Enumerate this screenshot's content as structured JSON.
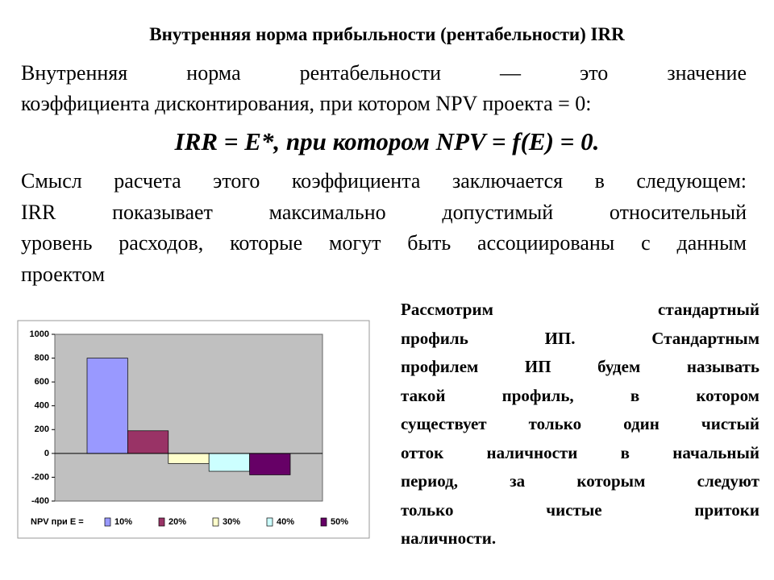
{
  "header": {
    "title": "Внутренняя норма прибыльности (рентабельности) IRR"
  },
  "paragraph1": [
    "Внутренняя норма рентабельности — это значение",
    "коэффициента дисконтирования, при котором NPV проекта = 0:"
  ],
  "formula": "IRR = E*, при котором NPV = f(E) = 0.",
  "paragraph2": [
    "Смысл расчета этого коэффициента заключается в следующем:",
    "IRR показывает максимально допустимый относительный",
    "уровень расходов, которые могут быть ассоциированы с данным",
    "проектом"
  ],
  "side_text": [
    "Рассмотрим стандартный",
    "профиль ИП. Стандартным",
    "профилем ИП будем называть",
    "такой профиль, в котором",
    "существует только один чистый",
    "отток наличности в начальный",
    "период, за которым следуют",
    "только чистые притоки",
    "наличности."
  ],
  "chart_data": {
    "type": "bar",
    "legend_title": "NPV при E =",
    "categories": [
      null
    ],
    "series": [
      {
        "name": "10%",
        "color": "#9999ff",
        "values": [
          800
        ]
      },
      {
        "name": "20%",
        "color": "#993366",
        "values": [
          190
        ]
      },
      {
        "name": "30%",
        "color": "#ffffcc",
        "values": [
          -85
        ]
      },
      {
        "name": "40%",
        "color": "#ccffff",
        "values": [
          -150
        ]
      },
      {
        "name": "50%",
        "color": "#660066",
        "values": [
          -180
        ]
      }
    ],
    "ylim": [
      -400,
      1000
    ],
    "yticks": [
      -400,
      -200,
      0,
      200,
      400,
      600,
      800,
      1000
    ],
    "legend": "bottom"
  }
}
